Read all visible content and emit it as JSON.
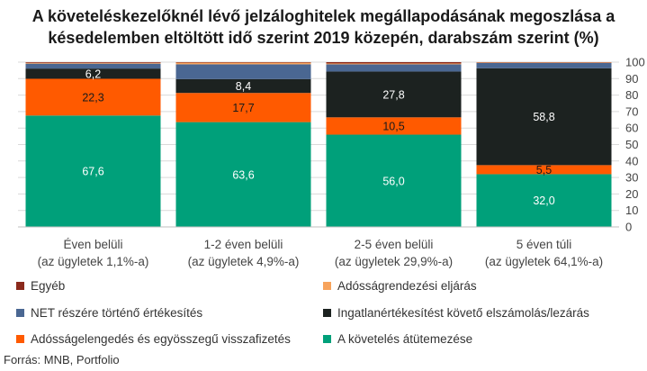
{
  "title_lines": [
    "A követeléskezelőknél lévő jelzáloghitelek megállapodásának megoszlása a",
    "késedelemben eltöltött idő szerint 2019 közepén, darabszám szerint (%)"
  ],
  "source": "Forrás: MNB, Portfolio",
  "chart_data": {
    "type": "bar",
    "stacked": true,
    "title": "A követeléskezelőknél lévő jelzáloghitelek megállapodásának megoszlása a késedelemben eltöltött idő szerint 2019 közepén, darabszám szerint (%)",
    "categories": [
      [
        "Éven belüli",
        "(az ügyletek 1,1%-a)"
      ],
      [
        "1-2 éven belüli",
        "(az ügyletek 4,9%-a)"
      ],
      [
        "2-5 éven belüli",
        "(az ügyletek 29,9%-a)"
      ],
      [
        "5 éven túli",
        "(az ügyletek 64,1%-a)"
      ]
    ],
    "ylim": [
      0,
      100
    ],
    "yticks": [
      0,
      10,
      20,
      30,
      40,
      50,
      60,
      70,
      80,
      90,
      100
    ],
    "yaxis_side": "right",
    "grid": true,
    "series": [
      {
        "name": "A követelés átütemezése",
        "color": "#00a07a",
        "values": [
          67.6,
          63.6,
          56.0,
          32.0
        ],
        "labels": [
          "67,6",
          "63,6",
          "56,0",
          "32,0"
        ],
        "label_color": "#ffffff"
      },
      {
        "name": "Adósságelengedés és egyösszegű visszafizetés",
        "color": "#ff5a00",
        "values": [
          22.3,
          17.7,
          10.5,
          5.5
        ],
        "labels": [
          "22,3",
          "17,7",
          "10,5",
          "5,5"
        ],
        "label_color": "#1a1a1a"
      },
      {
        "name": "Ingatlanértékesítést követő elszámolás/lezárás",
        "color": "#1c2220",
        "values": [
          6.2,
          8.4,
          27.8,
          58.8
        ],
        "labels": [
          "6,2",
          "8,4",
          "27,8",
          "58,8"
        ],
        "label_color": "#ffffff"
      },
      {
        "name": "NET részére történő értékesítés",
        "color": "#4a6792",
        "values": [
          3.0,
          9.0,
          4.4,
          3.2
        ],
        "labels": [
          "",
          "",
          "",
          ""
        ],
        "label_color": "#ffffff"
      },
      {
        "name": "Adósságrendezési eljárás",
        "color": "#f7a35c",
        "values": [
          0.5,
          1.0,
          0.5,
          0.3
        ],
        "labels": [
          "",
          "",
          "",
          ""
        ],
        "label_color": "#ffffff"
      },
      {
        "name": "Egyéb",
        "color": "#8b2a1c",
        "values": [
          0.4,
          0.3,
          0.8,
          0.2
        ],
        "labels": [
          "",
          "",
          "",
          ""
        ],
        "label_color": "#ffffff"
      }
    ],
    "legend_order": [
      "Egyéb",
      "Adósságrendezési eljárás",
      "NET részére történő értékesítés",
      "Ingatlanértékesítést követő elszámolás/lezárás",
      "Adósságelengedés és egyösszegű visszafizetés",
      "A követelés átütemezése"
    ],
    "legend_position": "bottom"
  }
}
